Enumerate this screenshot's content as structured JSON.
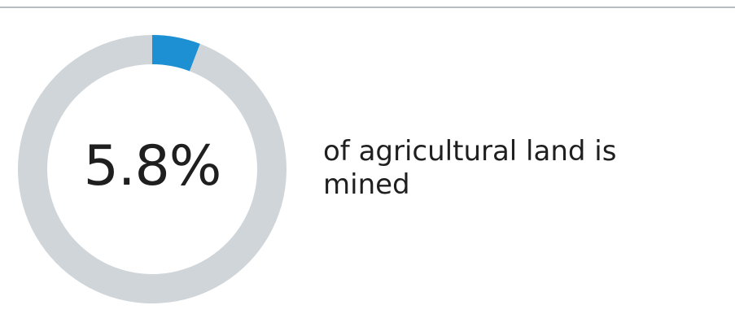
{
  "chart_data": {
    "type": "pie",
    "variant": "donut",
    "value_percent": 5.8,
    "value_label": "5.8%",
    "caption": "of agricultural land is mined",
    "slices": [
      {
        "value": 5.8
      },
      {
        "value": 94.2
      }
    ],
    "colors": {
      "highlight": "#1d90d3",
      "remainder": "#cfd5d8"
    }
  }
}
